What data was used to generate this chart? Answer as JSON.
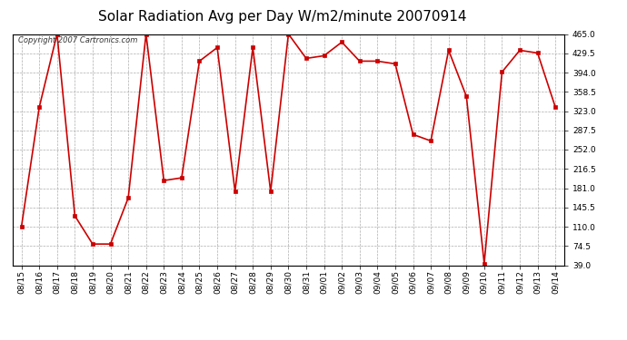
{
  "title": "Solar Radiation Avg per Day W/m2/minute 20070914",
  "copyright": "Copyright 2007 Cartronics.com",
  "dates": [
    "08/15",
    "08/16",
    "08/17",
    "08/18",
    "08/19",
    "08/20",
    "08/21",
    "08/22",
    "08/23",
    "08/24",
    "08/25",
    "08/26",
    "08/27",
    "08/28",
    "08/29",
    "08/30",
    "08/31",
    "09/01",
    "09/02",
    "09/03",
    "09/04",
    "09/05",
    "09/06",
    "09/07",
    "09/08",
    "09/09",
    "09/10",
    "09/11",
    "09/12",
    "09/13",
    "09/14"
  ],
  "values": [
    110,
    330,
    465,
    130,
    78,
    78,
    163,
    465,
    195,
    200,
    415,
    440,
    175,
    440,
    175,
    465,
    420,
    425,
    450,
    415,
    415,
    410,
    280,
    268,
    435,
    350,
    42,
    395,
    435,
    430,
    330
  ],
  "line_color": "#cc0000",
  "marker_color": "#cc0000",
  "bg_color": "#ffffff",
  "plot_bg_color": "#ffffff",
  "grid_color": "#999999",
  "yticks": [
    39.0,
    74.5,
    110.0,
    145.5,
    181.0,
    216.5,
    252.0,
    287.5,
    323.0,
    358.5,
    394.0,
    429.5,
    465.0
  ],
  "ylim": [
    39.0,
    465.0
  ],
  "title_fontsize": 11,
  "tick_fontsize": 6.5,
  "copyright_fontsize": 6.0
}
